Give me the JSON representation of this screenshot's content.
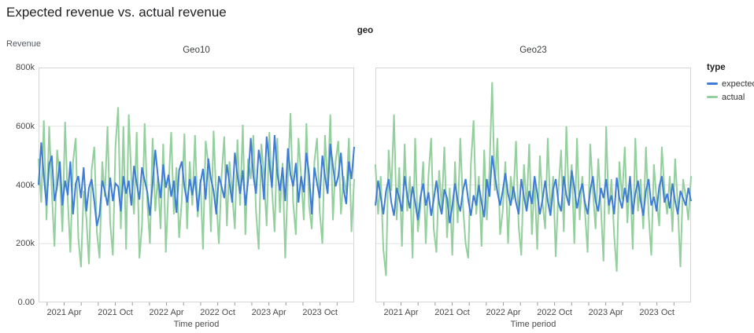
{
  "page": {
    "title": "Expected revenue vs. actual revenue"
  },
  "facet_header": "geo",
  "axes": {
    "y_title": "Revenue",
    "x_title": "Time period",
    "y_ticks": [
      {
        "label": "800k",
        "value": 800
      },
      {
        "label": "600k",
        "value": 600
      },
      {
        "label": "400k",
        "value": 400
      },
      {
        "label": "200k",
        "value": 200
      },
      {
        "label": "0.00",
        "value": 0
      }
    ],
    "x_major_ticks": [
      {
        "label": "2021 Apr",
        "month": 3
      },
      {
        "label": "2021 Oct",
        "month": 9
      },
      {
        "label": "2022 Apr",
        "month": 15
      },
      {
        "label": "2022 Oct",
        "month": 21
      },
      {
        "label": "2023 Apr",
        "month": 27
      },
      {
        "label": "2023 Oct",
        "month": 33
      }
    ],
    "x_minor_months": [
      1,
      3,
      5,
      7,
      9,
      11,
      13,
      15,
      17,
      19,
      21,
      23,
      25,
      27,
      29,
      31,
      33,
      35
    ],
    "x_domain_months": 37,
    "y_domain_k": [
      0,
      800
    ]
  },
  "legend": {
    "title": "type",
    "items": [
      {
        "label": "expected",
        "color": "#3d7dd8"
      },
      {
        "label": "actual",
        "color": "#94cf9e"
      }
    ]
  },
  "chart_data": {
    "type": "line",
    "title": "Expected revenue vs. actual revenue",
    "facet_field": "geo",
    "x_field": "Time period",
    "y_field": "Revenue",
    "x_range": [
      "2021-01",
      "2024-01"
    ],
    "points_per_series": 120,
    "value_unit": "thousands",
    "ylim_k": [
      0,
      800
    ],
    "grid": true,
    "legend_position": "right",
    "facets": [
      {
        "name": "Geo10",
        "series": [
          {
            "name": "expected",
            "values": [
              400,
              545,
              430,
              330,
              470,
              500,
              345,
              395,
              480,
              330,
              415,
              365,
              480,
              300,
              405,
              430,
              355,
              460,
              310,
              390,
              420,
              345,
              260,
              300,
              415,
              380,
              330,
              425,
              345,
              405,
              395,
              310,
              430,
              370,
              415,
              330,
              465,
              405,
              350,
              460,
              415,
              375,
              295,
              405,
              520,
              430,
              355,
              470,
              390,
              435,
              360,
              415,
              305,
              450,
              480,
              395,
              340,
              420,
              365,
              430,
              310,
              405,
              455,
              350,
              490,
              420,
              380,
              300,
              430,
              395,
              355,
              470,
              405,
              340,
              510,
              430,
              370,
              450,
              330,
              415,
              560,
              430,
              370,
              520,
              460,
              350,
              565,
              475,
              390,
              570,
              440,
              380,
              460,
              345,
              525,
              435,
              395,
              475,
              340,
              430,
              375,
              510,
              435,
              300,
              460,
              405,
              355,
              500,
              430,
              370,
              540,
              465,
              395,
              430,
              510,
              385,
              335,
              480,
              420,
              530
            ]
          },
          {
            "name": "actual",
            "values": [
              490,
              340,
              620,
              280,
              600,
              380,
              190,
              520,
              430,
              240,
              615,
              350,
              170,
              480,
              560,
              220,
              120,
              380,
              290,
              130,
              450,
              530,
              240,
              150,
              480,
              360,
              600,
              270,
              160,
              530,
              665,
              250,
              600,
              180,
              640,
              420,
              300,
              580,
              150,
              260,
              610,
              340,
              200,
              560,
              310,
              430,
              250,
              540,
              170,
              390,
              580,
              300,
              460,
              220,
              350,
              575,
              250,
              480,
              330,
              570,
              290,
              420,
              180,
              550,
              470,
              240,
              585,
              350,
              200,
              430,
              565,
              260,
              480,
              370,
              250,
              555,
              330,
              605,
              230,
              490,
              420,
              570,
              310,
              180,
              540,
              430,
              260,
              580,
              390,
              240,
              560,
              305,
              475,
              150,
              425,
              645,
              340,
              230,
              560,
              430,
              280,
              610,
              330,
              250,
              480,
              560,
              310,
              200,
              570,
              390,
              640,
              280,
              480,
              550,
              300,
              430,
              370,
              560,
              240,
              420
            ]
          }
        ]
      },
      {
        "name": "Geo23",
        "series": [
          {
            "name": "expected",
            "values": [
              330,
              415,
              360,
              300,
              380,
              420,
              340,
              295,
              390,
              355,
              310,
              430,
              365,
              320,
              395,
              340,
              280,
              360,
              405,
              330,
              375,
              295,
              350,
              415,
              340,
              300,
              385,
              355,
              270,
              330,
              405,
              345,
              310,
              380,
              420,
              350,
              295,
              365,
              330,
              400,
              340,
              290,
              420,
              360,
              500,
              435,
              375,
              330,
              380,
              440,
              370,
              330,
              395,
              340,
              300,
              420,
              360,
              310,
              380,
              335,
              430,
              370,
              300,
              350,
              415,
              345,
              295,
              385,
              420,
              340,
              310,
              430,
              365,
              330,
              450,
              390,
              320,
              370,
              405,
              340,
              300,
              380,
              430,
              345,
              310,
              390,
              355,
              420,
              330,
              365,
              300,
              425,
              355,
              320,
              390,
              340,
              430,
              300,
              370,
              415,
              345,
              295,
              380,
              420,
              330,
              360,
              310,
              395,
              430,
              340,
              370,
              320,
              405,
              345,
              300,
              380,
              355,
              330,
              390,
              345
            ]
          },
          {
            "name": "actual",
            "values": [
              470,
              300,
              430,
              180,
              90,
              520,
              380,
              640,
              280,
              460,
              190,
              540,
              310,
              430,
              150,
              560,
              240,
              330,
              480,
              200,
              430,
              560,
              250,
              170,
              450,
              320,
              530,
              220,
              390,
              160,
              480,
              270,
              560,
              330,
              200,
              150,
              470,
              620,
              300,
              430,
              190,
              520,
              280,
              450,
              750,
              380,
              560,
              230,
              310,
              480,
              200,
              430,
              350,
              550,
              260,
              160,
              470,
              320,
              540,
              230,
              420,
              180,
              500,
              340,
              250,
              560,
              300,
              430,
              155,
              380,
              520,
              240,
              600,
              330,
              470,
              200,
              560,
              280,
              430,
              310,
              170,
              540,
              380,
              250,
              490,
              330,
              140,
              600,
              300,
              420,
              230,
              105,
              480,
              350,
              530,
              270,
              430,
              180,
              560,
              310,
              420,
              250,
              530,
              300,
              160,
              470,
              350,
              260,
              530,
              380,
              300,
              430,
              240,
              490,
              330,
              120,
              420,
              360,
              280,
              430
            ]
          }
        ]
      }
    ]
  },
  "style": {
    "grid_color": "#e4e4e4",
    "border_color": "#d6d6d6",
    "tick_color": "#9a9a9a",
    "axis_text_color": "#494949"
  }
}
